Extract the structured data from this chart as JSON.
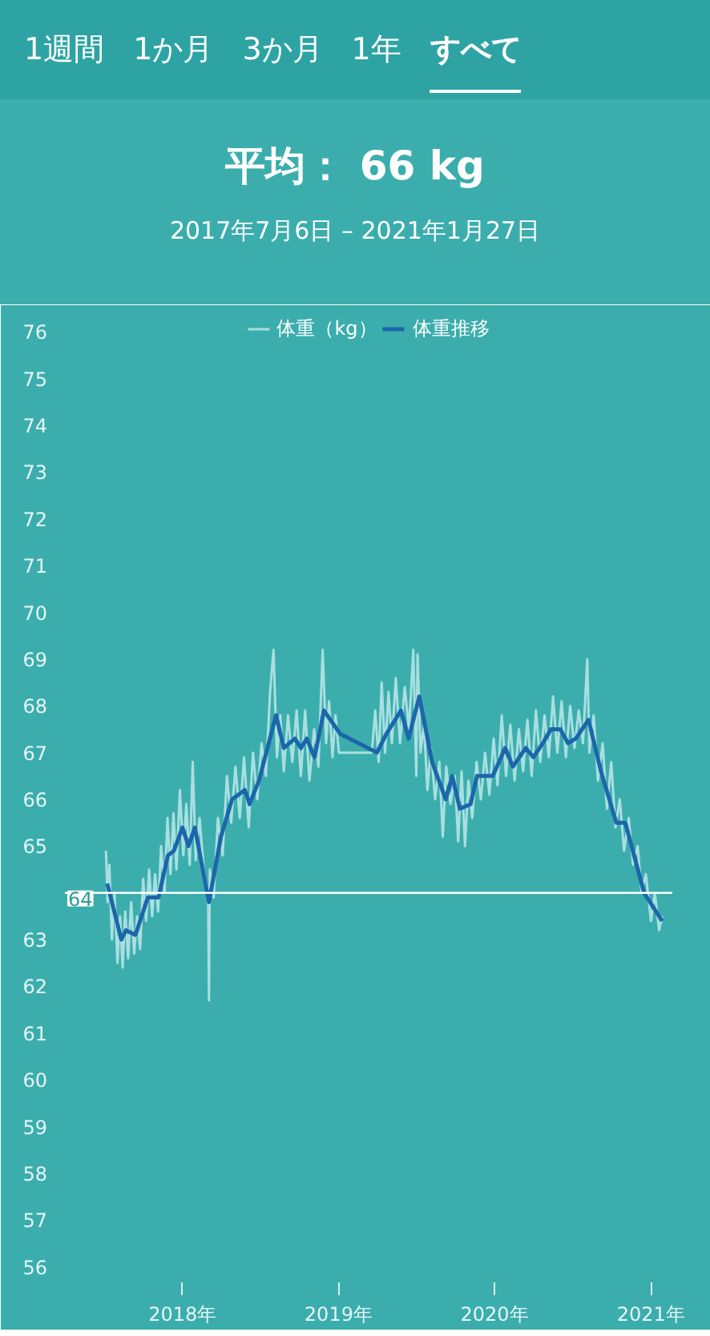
{
  "chart_data": {
    "type": "line",
    "annotations": [
      "1週間",
      "1か月",
      "3か月",
      "1年",
      "すべて"
    ],
    "title": "平均： 66 kg",
    "subtitle": "2017年7月6日 – 2021年1月27日",
    "series": [
      {
        "name": "体重（kg）",
        "color": "#a9dfe0",
        "x": [
          "2017-07-06",
          "2017-07-10",
          "2017-07-14",
          "2017-07-20",
          "2017-07-26",
          "2017-08-02",
          "2017-08-08",
          "2017-08-14",
          "2017-08-20",
          "2017-08-27",
          "2017-09-03",
          "2017-09-10",
          "2017-09-17",
          "2017-09-24",
          "2017-10-01",
          "2017-10-08",
          "2017-10-15",
          "2017-10-22",
          "2017-10-29",
          "2017-11-05",
          "2017-11-12",
          "2017-11-20",
          "2017-11-27",
          "2017-12-04",
          "2017-12-11",
          "2017-12-18",
          "2017-12-26",
          "2018-01-03",
          "2018-01-10",
          "2018-01-18",
          "2018-01-25",
          "2018-02-01",
          "2018-02-10",
          "2018-02-20",
          "2018-03-02",
          "2018-03-04",
          "2018-03-06",
          "2018-03-15",
          "2018-03-25",
          "2018-04-05",
          "2018-04-15",
          "2018-04-25",
          "2018-05-05",
          "2018-05-15",
          "2018-05-25",
          "2018-06-05",
          "2018-06-15",
          "2018-06-25",
          "2018-07-05",
          "2018-07-15",
          "2018-07-25",
          "2018-08-02",
          "2018-08-10",
          "2018-08-18",
          "2018-08-26",
          "2018-09-05",
          "2018-09-15",
          "2018-09-25",
          "2018-10-05",
          "2018-10-15",
          "2018-10-25",
          "2018-11-05",
          "2018-11-15",
          "2018-11-25",
          "2018-12-03",
          "2018-12-10",
          "2018-12-18",
          "2018-12-25",
          "2019-01-02",
          "2019-03-20",
          "2019-03-28",
          "2019-04-05",
          "2019-04-12",
          "2019-04-20",
          "2019-04-28",
          "2019-05-06",
          "2019-05-15",
          "2019-05-25",
          "2019-06-05",
          "2019-06-15",
          "2019-06-25",
          "2019-07-02",
          "2019-07-05",
          "2019-07-12",
          "2019-07-20",
          "2019-07-28",
          "2019-08-05",
          "2019-08-15",
          "2019-08-25",
          "2019-09-02",
          "2019-09-10",
          "2019-09-20",
          "2019-09-30",
          "2019-10-08",
          "2019-10-16",
          "2019-10-24",
          "2019-11-01",
          "2019-11-10",
          "2019-11-20",
          "2019-11-30",
          "2019-12-10",
          "2019-12-20",
          "2019-12-30",
          "2020-01-08",
          "2020-01-18",
          "2020-01-28",
          "2020-02-07",
          "2020-02-17",
          "2020-02-27",
          "2020-03-08",
          "2020-03-18",
          "2020-03-28",
          "2020-04-07",
          "2020-04-17",
          "2020-04-27",
          "2020-05-07",
          "2020-05-17",
          "2020-05-27",
          "2020-06-06",
          "2020-06-16",
          "2020-06-26",
          "2020-07-06",
          "2020-07-16",
          "2020-07-26",
          "2020-08-05",
          "2020-08-10",
          "2020-08-20",
          "2020-08-30",
          "2020-09-10",
          "2020-09-20",
          "2020-09-30",
          "2020-10-10",
          "2020-10-20",
          "2020-10-30",
          "2020-11-10",
          "2020-11-20",
          "2020-12-01",
          "2020-12-10",
          "2020-12-20",
          "2021-01-01",
          "2021-01-10",
          "2021-01-20",
          "2021-01-27"
        ],
        "values": [
          64.9,
          63.8,
          64.6,
          63.0,
          64.0,
          62.5,
          63.5,
          62.4,
          63.6,
          62.6,
          63.8,
          62.7,
          63.5,
          62.8,
          64.3,
          63.4,
          64.5,
          63.5,
          64.4,
          63.6,
          65.0,
          64.0,
          65.6,
          64.4,
          65.7,
          64.5,
          66.2,
          64.8,
          65.9,
          64.6,
          66.8,
          64.7,
          65.6,
          64.5,
          64.0,
          61.7,
          64.5,
          63.9,
          65.6,
          64.8,
          66.5,
          65.5,
          66.7,
          65.6,
          66.9,
          65.4,
          67.0,
          66.0,
          67.2,
          66.5,
          68.3,
          69.2,
          66.9,
          67.8,
          66.6,
          67.8,
          66.8,
          67.9,
          66.5,
          67.9,
          66.4,
          67.5,
          66.7,
          69.2,
          67.2,
          68.1,
          66.9,
          67.8,
          67.0,
          67.0,
          67.9,
          66.8,
          68.5,
          67.0,
          68.3,
          67.2,
          68.6,
          67.2,
          68.4,
          67.5,
          69.2,
          66.5,
          69.1,
          67.0,
          67.6,
          66.2,
          67.1,
          66.0,
          66.8,
          65.2,
          66.7,
          65.9,
          66.5,
          65.1,
          66.6,
          65.0,
          66.4,
          65.6,
          66.8,
          66.0,
          67.0,
          66.1,
          67.3,
          66.3,
          67.8,
          66.5,
          67.6,
          66.4,
          67.5,
          66.6,
          67.7,
          66.5,
          67.9,
          66.8,
          67.8,
          66.9,
          68.2,
          67.0,
          68.1,
          66.9,
          68.0,
          67.1,
          67.9,
          67.2,
          69.0,
          67.0,
          67.8,
          66.4,
          67.2,
          65.8,
          66.8,
          65.4,
          66.0,
          64.9,
          65.6,
          64.6,
          65.0,
          64.0,
          64.4,
          63.4,
          64.0,
          63.2,
          63.5
        ]
      },
      {
        "name": "体重推移",
        "color": "#1c66aa",
        "x": [
          "2017-07-09",
          "2017-08-11",
          "2017-08-22",
          "2017-09-13",
          "2017-10-12",
          "2017-11-06",
          "2017-11-28",
          "2017-12-12",
          "2018-01-01",
          "2018-01-15",
          "2018-01-30",
          "2018-03-04",
          "2018-04-01",
          "2018-04-27",
          "2018-05-27",
          "2018-06-07",
          "2018-06-29",
          "2018-08-08",
          "2018-08-26",
          "2018-09-21",
          "2018-10-05",
          "2018-10-19",
          "2018-11-06",
          "2018-11-28",
          "2019-01-05",
          "2019-04-01",
          "2019-04-23",
          "2019-05-27",
          "2019-06-14",
          "2019-07-09",
          "2019-08-08",
          "2019-09-09",
          "2019-09-24",
          "2019-10-12",
          "2019-11-06",
          "2019-11-21",
          "2019-12-28",
          "2020-01-26",
          "2020-02-13",
          "2020-03-14",
          "2020-04-01",
          "2020-04-23",
          "2020-05-12",
          "2020-06-03",
          "2020-06-21",
          "2020-07-09",
          "2020-08-08",
          "2020-09-06",
          "2020-10-12",
          "2020-11-02",
          "2020-12-16",
          "2021-01-27"
        ],
        "values": [
          64.2,
          63.0,
          63.2,
          63.1,
          63.9,
          63.9,
          64.8,
          64.9,
          65.4,
          65.0,
          65.4,
          63.8,
          65.2,
          66.0,
          66.2,
          65.9,
          66.4,
          67.8,
          67.1,
          67.3,
          67.1,
          67.3,
          66.9,
          67.9,
          67.4,
          67.0,
          67.4,
          67.9,
          67.3,
          68.2,
          66.8,
          66.0,
          66.5,
          65.8,
          65.9,
          66.5,
          66.5,
          67.1,
          66.7,
          67.1,
          66.9,
          67.2,
          67.5,
          67.5,
          67.2,
          67.3,
          67.7,
          66.6,
          65.5,
          65.5,
          64.0,
          63.4
        ]
      }
    ],
    "xlim": [
      "2017-04-01",
      "2021-02-20"
    ],
    "xticks": [
      {
        "value": "2018-01-01",
        "label": "2018年"
      },
      {
        "value": "2019-01-01",
        "label": "2019年"
      },
      {
        "value": "2020-01-01",
        "label": "2020年"
      },
      {
        "value": "2021-01-01",
        "label": "2021年"
      }
    ],
    "ylim": [
      55.6,
      76.4
    ],
    "yticks": [
      56,
      57,
      58,
      59,
      60,
      61,
      62,
      63,
      65,
      66,
      67,
      68,
      69,
      70,
      71,
      72,
      73,
      74,
      75,
      76
    ],
    "ref_lines": [
      {
        "axis": "y",
        "value": 64,
        "label": "64",
        "color": "#ffffff"
      }
    ],
    "legend": "top",
    "grid": false
  }
}
